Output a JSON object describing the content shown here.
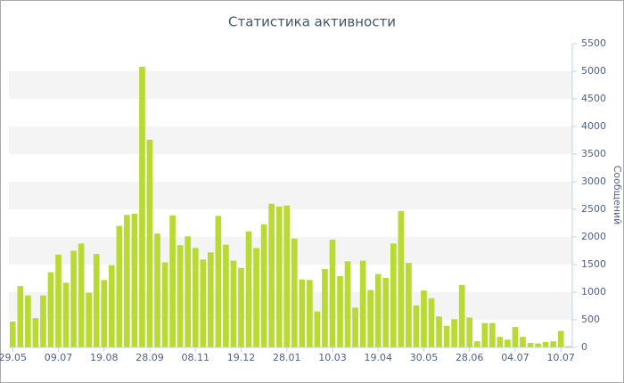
{
  "chart_data": {
    "type": "bar",
    "title": "Статистика активности",
    "y_label": "Сообщений",
    "categories": [
      "29.05",
      null,
      null,
      null,
      null,
      null,
      "09.07",
      null,
      null,
      null,
      null,
      null,
      "19.08",
      null,
      null,
      null,
      null,
      null,
      "28.09",
      null,
      null,
      null,
      null,
      null,
      "08.11",
      null,
      null,
      null,
      null,
      null,
      "19.12",
      null,
      null,
      null,
      null,
      null,
      "28.01",
      null,
      null,
      null,
      null,
      null,
      "10.03",
      null,
      null,
      null,
      null,
      null,
      "19.04",
      null,
      null,
      null,
      null,
      null,
      "30.05",
      null,
      null,
      null,
      null,
      null,
      "28.06",
      null,
      null,
      null,
      null,
      null,
      "04.07",
      null,
      null,
      null,
      null,
      null,
      "10.07",
      null
    ],
    "values": [
      470,
      1110,
      940,
      530,
      940,
      1360,
      1680,
      1170,
      1750,
      1880,
      990,
      1690,
      1220,
      1490,
      2200,
      2400,
      2420,
      5080,
      3760,
      2060,
      1540,
      2390,
      1850,
      2010,
      1800,
      1590,
      1720,
      2380,
      1860,
      1570,
      1440,
      2100,
      1800,
      2230,
      2600,
      2550,
      2570,
      1970,
      1230,
      1220,
      650,
      1420,
      1950,
      1290,
      1560,
      720,
      1570,
      1040,
      1330,
      1260,
      1880,
      2470,
      1530,
      760,
      1030,
      890,
      560,
      390,
      510,
      1130,
      540,
      110,
      440,
      440,
      190,
      140,
      370,
      190,
      80,
      70,
      100,
      110,
      300,
      20
    ],
    "color": "#b8da33",
    "ylim": [
      0,
      5500
    ],
    "yticks": [
      0,
      500,
      1000,
      1500,
      2000,
      2500,
      3000,
      3500,
      4000,
      4500,
      5000,
      5500
    ],
    "grid": "bands",
    "axis_side": "right"
  }
}
